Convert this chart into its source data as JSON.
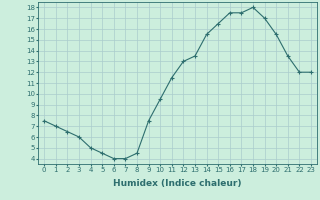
{
  "x": [
    0,
    1,
    2,
    3,
    4,
    5,
    6,
    7,
    8,
    9,
    10,
    11,
    12,
    13,
    14,
    15,
    16,
    17,
    18,
    19,
    20,
    21,
    22,
    23
  ],
  "y": [
    7.5,
    7.0,
    6.5,
    6.0,
    5.0,
    4.5,
    4.0,
    4.0,
    4.5,
    7.5,
    9.5,
    11.5,
    13.0,
    13.5,
    15.5,
    16.5,
    17.5,
    17.5,
    18.0,
    17.0,
    15.5,
    13.5,
    12.0,
    12.0
  ],
  "line_color": "#2d6e6e",
  "marker": "+",
  "marker_size": 3,
  "bg_color": "#cceedd",
  "grid_color": "#aacccc",
  "xlabel": "Humidex (Indice chaleur)",
  "ylim": [
    3.5,
    18.5
  ],
  "xlim": [
    -0.5,
    23.5
  ],
  "yticks": [
    4,
    5,
    6,
    7,
    8,
    9,
    10,
    11,
    12,
    13,
    14,
    15,
    16,
    17,
    18
  ],
  "xticks": [
    0,
    1,
    2,
    3,
    4,
    5,
    6,
    7,
    8,
    9,
    10,
    11,
    12,
    13,
    14,
    15,
    16,
    17,
    18,
    19,
    20,
    21,
    22,
    23
  ],
  "tick_color": "#2d6e6e",
  "label_color": "#2d6e6e",
  "tick_fontsize": 5.0,
  "xlabel_fontsize": 6.5,
  "linewidth": 0.8,
  "markeredgewidth": 0.8
}
